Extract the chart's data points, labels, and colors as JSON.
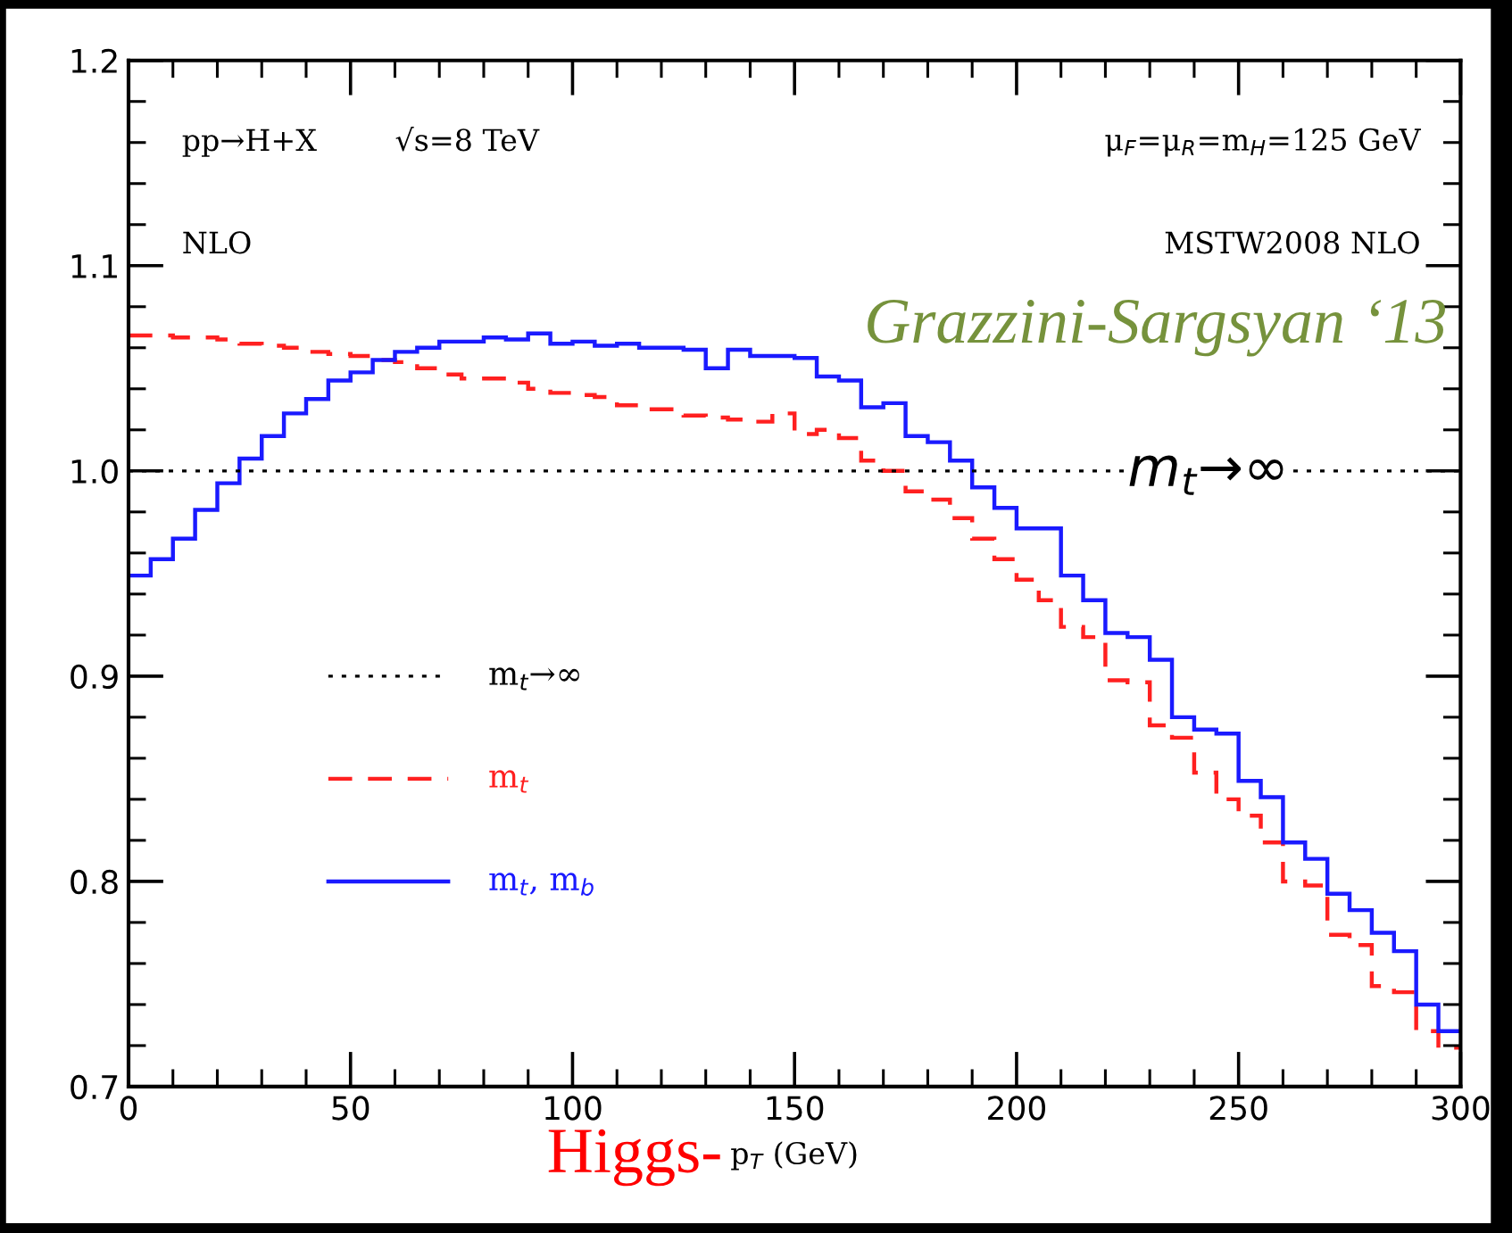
{
  "chart_data": {
    "type": "histogram",
    "xlabel": "p$_{T}$ (GeV)",
    "bins": [
      0,
      5,
      10,
      15,
      20,
      25,
      30,
      35,
      40,
      45,
      50,
      55,
      60,
      65,
      70,
      75,
      80,
      85,
      90,
      95,
      100,
      105,
      110,
      115,
      120,
      125,
      130,
      135,
      140,
      145,
      150,
      155,
      160,
      165,
      170,
      175,
      180,
      185,
      190,
      195,
      200,
      205,
      210,
      215,
      220,
      225,
      230,
      235,
      240,
      245,
      250,
      255,
      260,
      265,
      270,
      275,
      280,
      285,
      290,
      295,
      300
    ],
    "series": [
      {
        "name": "m$_{t}$",
        "color": "#ff2020",
        "line_style": "dashed",
        "values": [
          1.066,
          1.066,
          1.065,
          1.065,
          1.064,
          1.062,
          1.061,
          1.06,
          1.058,
          1.057,
          1.056,
          1.054,
          1.053,
          1.05,
          1.047,
          1.045,
          1.045,
          1.043,
          1.04,
          1.038,
          1.037,
          1.036,
          1.032,
          1.03,
          1.03,
          1.027,
          1.026,
          1.025,
          1.024,
          1.028,
          1.018,
          1.02,
          1.016,
          1.005,
          1.0,
          0.99,
          0.986,
          0.977,
          0.967,
          0.957,
          0.947,
          0.937,
          0.924,
          0.919,
          0.898,
          0.897,
          0.876,
          0.87,
          0.853,
          0.84,
          0.832,
          0.819,
          0.8,
          0.798,
          0.774,
          0.769,
          0.749,
          0.746,
          0.727,
          0.719
        ]
      },
      {
        "name": "m$_{t}$, m$_{b}$",
        "color": "#1a1aff",
        "line_style": "solid",
        "values": [
          0.949,
          0.957,
          0.967,
          0.981,
          0.994,
          1.006,
          1.017,
          1.028,
          1.035,
          1.044,
          1.048,
          1.054,
          1.058,
          1.06,
          1.063,
          1.063,
          1.065,
          1.064,
          1.067,
          1.062,
          1.063,
          1.061,
          1.062,
          1.06,
          1.06,
          1.059,
          1.05,
          1.059,
          1.056,
          1.056,
          1.055,
          1.046,
          1.044,
          1.031,
          1.033,
          1.017,
          1.014,
          1.005,
          0.992,
          0.982,
          0.972,
          0.972,
          0.949,
          0.937,
          0.921,
          0.919,
          0.908,
          0.88,
          0.874,
          0.872,
          0.849,
          0.841,
          0.819,
          0.811,
          0.794,
          0.786,
          0.775,
          0.766,
          0.74,
          0.727
        ]
      }
    ],
    "ref_lines": [
      {
        "axis": "y",
        "value": 1.0,
        "label": "m$_{t}$→∞",
        "color": "#000000",
        "line_style": "dotted"
      }
    ],
    "xlim": [
      0,
      300
    ],
    "xticks": [
      0,
      50,
      100,
      150,
      200,
      250,
      300
    ],
    "ylim": [
      0.7,
      1.2
    ],
    "yticks": [
      {
        "value": 0.7,
        "label": "0.7"
      },
      {
        "value": 0.8,
        "label": "0.8"
      },
      {
        "value": 0.9,
        "label": "0.9"
      },
      {
        "value": 1.0,
        "label": "1.0"
      },
      {
        "value": 1.1,
        "label": "1.1"
      },
      {
        "value": 1.2,
        "label": "1.2"
      }
    ],
    "legend": "bottom left",
    "grid": false,
    "annotations": [
      "pp→H+X",
      "√s=8 TeV",
      "μ$_{F}$=μ$_{R}$=m$_{H}$=125 GeV",
      "NLO",
      "MSTW2008 NLO",
      "Grazzini-Sargsyan ‘13",
      {
        "text": "m$_{t}$→∞",
        "x": 225,
        "y": 1.0
      },
      "Higgs-"
    ]
  }
}
